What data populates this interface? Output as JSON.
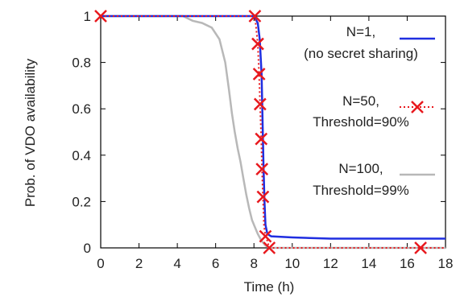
{
  "chart_data": {
    "type": "line",
    "title": "",
    "xlabel": "Time (h)",
    "ylabel": "Prob. of VDO availability",
    "xlim": [
      0,
      18
    ],
    "ylim": [
      0,
      1
    ],
    "xticks": [
      0,
      2,
      4,
      6,
      8,
      10,
      12,
      14,
      16,
      18
    ],
    "yticks": [
      0,
      0.2,
      0.4,
      0.6,
      0.8,
      1
    ],
    "xtick_labels": [
      "0",
      "2",
      "4",
      "6",
      "8",
      "10",
      "12",
      "14",
      "16",
      "18"
    ],
    "ytick_labels": [
      "0",
      "0.2",
      "0.4",
      "0.6",
      "0.8",
      "1"
    ],
    "grid": false,
    "legend_position": "top-right",
    "legend_labels": [
      [
        "N=1,",
        "(no secret sharing)"
      ],
      [
        "N=50,",
        "Threshold=90%"
      ],
      [
        "N=100,",
        "Threshold=99%"
      ]
    ],
    "series": [
      {
        "name": "N=1, (no secret sharing)",
        "color": "#1f2ee0",
        "style": "solid",
        "x": [
          0,
          8.0,
          8.2,
          8.3,
          8.4,
          8.45,
          8.5,
          8.55,
          8.6,
          8.7,
          8.8,
          8.9,
          10,
          12,
          14,
          16,
          18
        ],
        "y": [
          1,
          1,
          0.97,
          0.9,
          0.75,
          0.55,
          0.35,
          0.2,
          0.1,
          0.06,
          0.055,
          0.05,
          0.045,
          0.04,
          0.04,
          0.04,
          0.04
        ]
      },
      {
        "name": "N=50, Threshold=90%",
        "color": "#e8191e",
        "style": "dotted",
        "marker": "x",
        "x": [
          0,
          8.05,
          8.2,
          8.27,
          8.32,
          8.38,
          8.42,
          8.47,
          8.52,
          8.6,
          8.7,
          8.8,
          16.7,
          18
        ],
        "y": [
          1,
          1,
          0.88,
          0.75,
          0.62,
          0.47,
          0.34,
          0.22,
          0.1,
          0.05,
          0.03,
          0.0,
          0.0,
          0.0
        ],
        "marker_points": [
          [
            0,
            1
          ],
          [
            8.05,
            1
          ],
          [
            8.2,
            0.88
          ],
          [
            8.27,
            0.75
          ],
          [
            8.32,
            0.62
          ],
          [
            8.38,
            0.47
          ],
          [
            8.42,
            0.34
          ],
          [
            8.47,
            0.22
          ],
          [
            8.6,
            0.05
          ],
          [
            8.8,
            0.0
          ],
          [
            16.7,
            0.0
          ]
        ]
      },
      {
        "name": "N=100, Threshold=99%",
        "color": "#b8b8b8",
        "style": "solid",
        "x": [
          0,
          4.3,
          4.8,
          5.3,
          5.8,
          6.2,
          6.5,
          6.7,
          6.85,
          7.0,
          7.15,
          7.3,
          7.45,
          7.6,
          7.75,
          7.9,
          8.05,
          8.2,
          8.4,
          8.6,
          8.8,
          10,
          18
        ],
        "y": [
          1,
          1,
          0.98,
          0.97,
          0.95,
          0.9,
          0.8,
          0.68,
          0.58,
          0.5,
          0.43,
          0.37,
          0.3,
          0.23,
          0.17,
          0.12,
          0.09,
          0.06,
          0.03,
          0.01,
          0.0,
          0.0,
          0.0
        ]
      }
    ]
  }
}
